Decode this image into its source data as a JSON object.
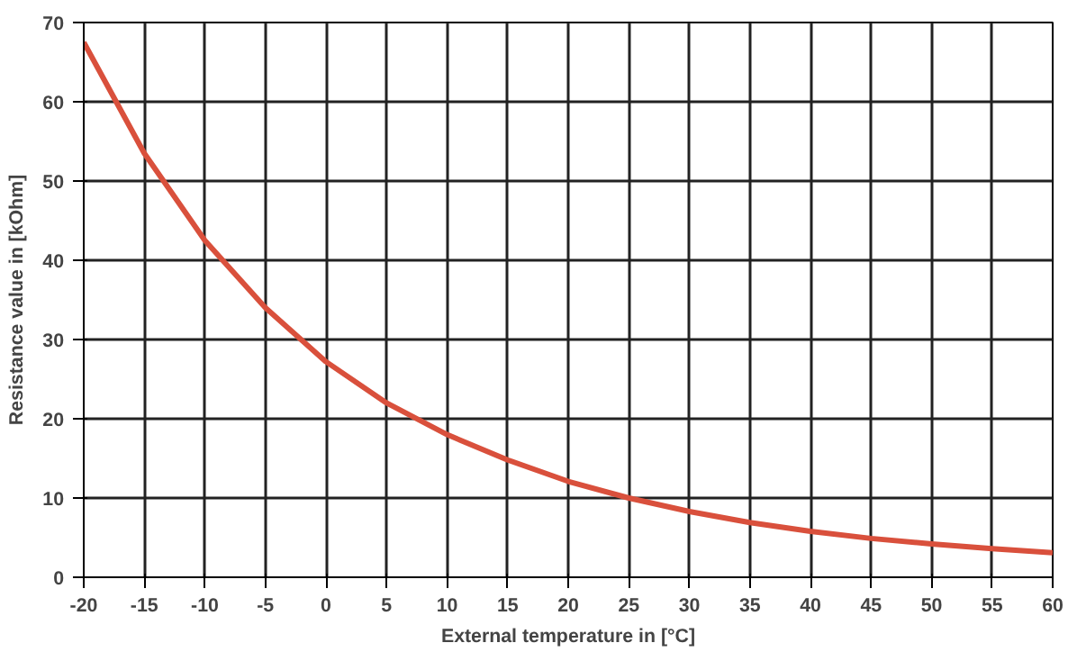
{
  "chart_data": {
    "type": "line",
    "xlabel": "External temperature in [°C]",
    "ylabel": "Resistance value in [kOhm]",
    "x": [
      -20,
      -15,
      -10,
      -5,
      0,
      5,
      10,
      15,
      20,
      25,
      30,
      35,
      40,
      45,
      50,
      55,
      60
    ],
    "series": [
      {
        "color": "#d9503c",
        "values": [
          67.5,
          53.5,
          42.5,
          34,
          27.2,
          22,
          18,
          14.8,
          12.1,
          10,
          8.3,
          6.9,
          5.8,
          4.9,
          4.2,
          3.6,
          3.1
        ]
      }
    ],
    "xlim": [
      -20,
      60
    ],
    "xticks": [
      -20,
      -15,
      -10,
      -5,
      0,
      5,
      10,
      15,
      20,
      25,
      30,
      35,
      40,
      45,
      50,
      55,
      60
    ],
    "ylim": [
      0,
      70
    ],
    "yticks": [
      0,
      10,
      20,
      30,
      40,
      50,
      60,
      70
    ],
    "grid": true,
    "marker": "none",
    "line_style": "solid"
  }
}
